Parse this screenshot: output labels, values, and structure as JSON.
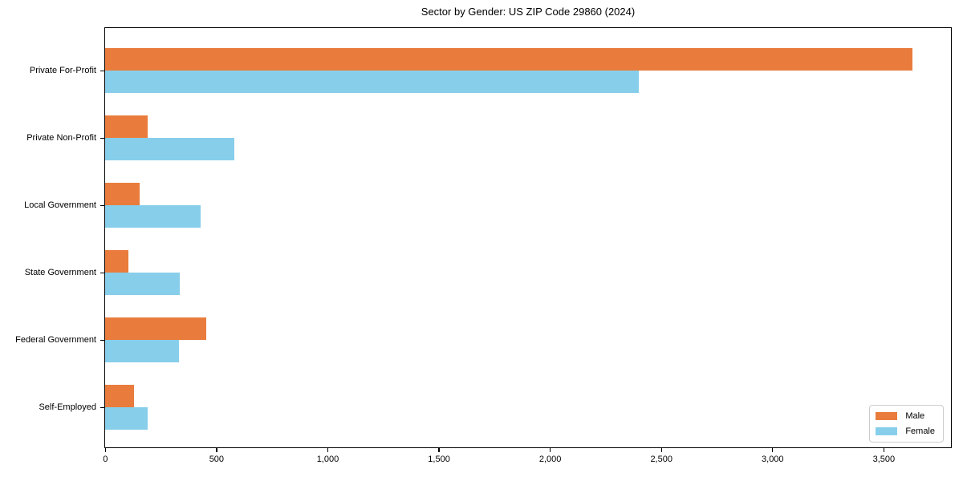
{
  "page": {
    "background": "#ffffff",
    "text_color": "#000000",
    "spine_color": "#000000"
  },
  "chart_data": {
    "type": "bar",
    "orientation": "horizontal",
    "title": "Sector by Gender: US ZIP Code 29860 (2024)",
    "xlabel": "",
    "ylabel": "",
    "categories": [
      "Private For-Profit",
      "Private Non-Profit",
      "Local Government",
      "State Government",
      "Federal Government",
      "Self-Employed"
    ],
    "series": [
      {
        "name": "Male",
        "color": "#e97c3c",
        "values": [
          3630,
          190,
          155,
          105,
          455,
          130
        ]
      },
      {
        "name": "Female",
        "color": "#87ceeb",
        "values": [
          2400,
          580,
          430,
          335,
          330,
          190
        ]
      }
    ],
    "xlim": [
      0,
      3810
    ],
    "xticks": {
      "values": [
        0,
        500,
        1000,
        1500,
        2000,
        2500,
        3000,
        3500
      ],
      "labels": [
        "0",
        "500",
        "1,000",
        "1,500",
        "2,000",
        "2,500",
        "3,000",
        "3,500"
      ]
    },
    "grid": false,
    "legend": {
      "position": "lower right",
      "border_color": "#cccccc",
      "background": "#ffffff"
    }
  }
}
